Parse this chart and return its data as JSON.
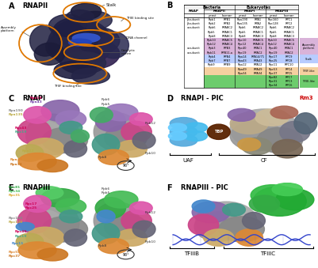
{
  "bg_color": "#ffffff",
  "orange_color": "#e07800",
  "table_rows": [
    [
      "β-subunit",
      "Rpb1",
      "RPB1",
      "Rpa190",
      "RPA1",
      "Rpc160",
      "RPC1"
    ],
    [
      "β-subunit",
      "Rpb2",
      "RPB2",
      "Rpa135",
      "RPA2",
      "Rpc128",
      "RPC2"
    ],
    [
      "α-subunit",
      "Rpb6",
      "RPABC2",
      "Rpb6",
      "RPABC2",
      "Rpb6",
      "RPABC2"
    ],
    [
      "",
      "Rpb5",
      "RPABC1",
      "Rpb5",
      "RPABC1",
      "Rpb5",
      "RPABC1"
    ],
    [
      "",
      "Rpb8",
      "RPABC3",
      "Rpb8",
      "RPABC3",
      "Rpb8",
      "RPABC3"
    ],
    [
      "",
      "Rpb10",
      "RPABC5",
      "Rpc10",
      "RPABC5",
      "Rpb10",
      "RPABC5"
    ],
    [
      "",
      "Rpb12",
      "RPABC4",
      "Rpc12",
      "RPABC4",
      "Rpb12",
      "RPABC4"
    ],
    [
      "α-subunit",
      "Rpb3",
      "RPB3",
      "Rpc40",
      "RPAC1",
      "Rpc40",
      "RPAC1"
    ],
    [
      "α-subunit",
      "Rpb11",
      "RPB11-a",
      "Rpc19",
      "RPAC2",
      "Rpc19",
      "RPAC2"
    ],
    [
      "",
      "Rpb4",
      "RPB4",
      "Rpa14",
      "RPA14/71",
      "Rpc17",
      "RPC9"
    ],
    [
      "",
      "Rpb7",
      "RPB7",
      "Rpa43",
      "RPA43",
      "Rpc25",
      "RPC8"
    ],
    [
      "",
      "Rpb9",
      "RPB9",
      "Rpa12",
      "RPA12",
      "Rpc11",
      "RPC10"
    ],
    [
      "",
      "",
      "",
      "Rpa49",
      "RPA49",
      "Rpc53",
      "RPC4"
    ],
    [
      "",
      "",
      "",
      "Rpa34",
      "RPA34",
      "Rpc37",
      "RPC5"
    ],
    [
      "",
      "",
      "",
      "",
      "",
      "Rpc82",
      "RPC7"
    ],
    [
      "",
      "",
      "",
      "",
      "",
      "Rpc31",
      "RPC3"
    ],
    [
      "",
      "",
      "",
      "",
      "",
      "Rpc34",
      "RPC6"
    ]
  ],
  "row_bg": {
    "5": "#d9b3d9",
    "6": "#d9b3d9",
    "7": "#d9b3d9",
    "8": "#d9b3d9",
    "9": "#b8ccff",
    "10": "#b8ccff",
    "12": "#f5d0a0",
    "13": "#f5d0a0",
    "14": "#6dcc6d",
    "15": "#6dcc6d",
    "16": "#6dcc6d"
  },
  "side_labels": [
    {
      "row": 5,
      "span": 4,
      "text": "Assembly\nplatform",
      "color": "#d9b3d9"
    },
    {
      "row": 9,
      "span": 2,
      "text": "Stalk",
      "color": "#b8ccff"
    },
    {
      "row": 12,
      "span": 2,
      "text": "TFIIF-like",
      "color": "#f5d0a0"
    },
    {
      "row": 14,
      "span": 3,
      "text": "TFIIE-like",
      "color": "#6dcc6d"
    }
  ]
}
